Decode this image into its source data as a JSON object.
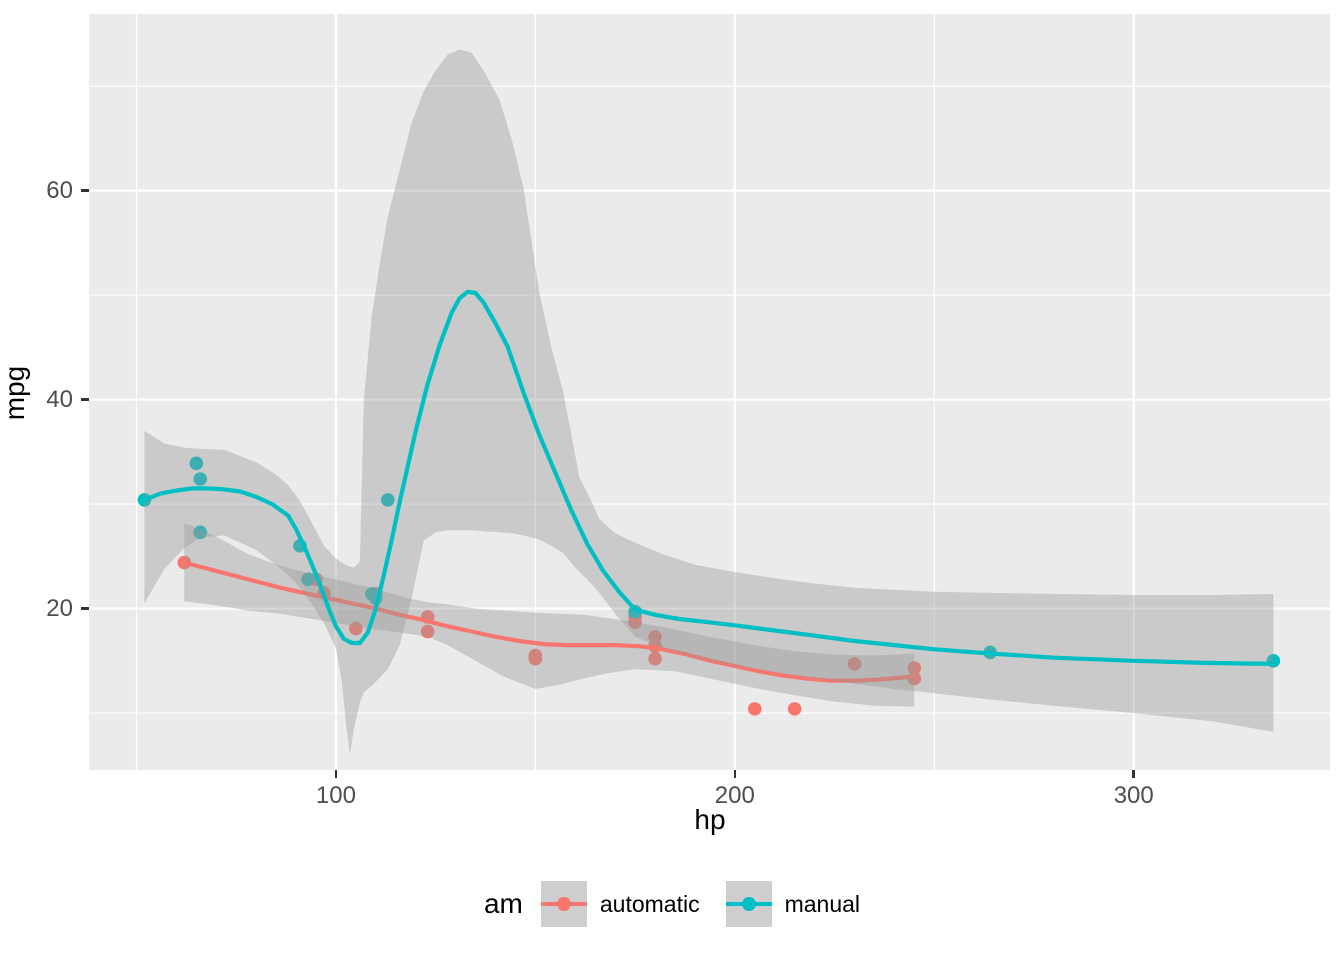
{
  "axes": {
    "x_label": "hp",
    "y_label": "mpg",
    "x_ticks": [
      100,
      200,
      300
    ],
    "y_ticks": [
      20,
      40,
      60
    ],
    "x_minor_ticks": [
      50,
      150,
      250
    ],
    "y_minor_ticks": [
      10,
      30,
      50,
      70
    ],
    "xlim": [
      38.1,
      349.2
    ],
    "ylim": [
      4.55,
      76.9
    ]
  },
  "legend": {
    "title": "am",
    "entries": [
      {
        "label": "automatic",
        "color": "#F8766D"
      },
      {
        "label": "manual",
        "color": "#00BFC4"
      }
    ]
  },
  "colors": {
    "figure_background": "#FFFFFF",
    "panel_background": "#EBEBEB",
    "grid": "#FFFFFF",
    "ribbon": "#999999",
    "ribbon_opacity": 0.4,
    "axis_text": "#4D4D4D",
    "axis_title": "#000000",
    "tick_mark": "#333333",
    "legend_key_background": "#CECECE"
  },
  "chart_data": {
    "type": "scatter",
    "subtype": "scatter-with-loess-smooth-and-confidence-ribbons",
    "title": "",
    "xlabel": "hp",
    "ylabel": "mpg",
    "xlim": [
      38.1,
      349.2
    ],
    "ylim": [
      4.55,
      76.9
    ],
    "grid": true,
    "legend_title": "am",
    "legend_position": "bottom",
    "series": [
      {
        "name": "automatic",
        "color": "#F8766D",
        "points": [
          [
            110,
            21.4
          ],
          [
            175,
            18.7
          ],
          [
            105,
            18.1
          ],
          [
            245,
            14.3
          ],
          [
            62,
            24.4
          ],
          [
            95,
            22.8
          ],
          [
            123,
            19.2
          ],
          [
            123,
            17.8
          ],
          [
            180,
            16.4
          ],
          [
            180,
            17.3
          ],
          [
            180,
            15.2
          ],
          [
            205,
            10.4
          ],
          [
            215,
            10.4
          ],
          [
            230,
            14.7
          ],
          [
            97,
            21.5
          ],
          [
            150,
            15.5
          ],
          [
            150,
            15.2
          ],
          [
            245,
            13.3
          ],
          [
            175,
            19.2
          ]
        ],
        "smooth_line": [
          [
            62,
            24.4
          ],
          [
            68,
            23.8
          ],
          [
            74,
            23.2
          ],
          [
            80,
            22.6
          ],
          [
            86,
            22.0
          ],
          [
            92,
            21.5
          ],
          [
            98,
            21.0
          ],
          [
            104,
            20.5
          ],
          [
            110,
            20.0
          ],
          [
            116,
            19.4
          ],
          [
            122,
            18.9
          ],
          [
            128,
            18.3
          ],
          [
            134,
            17.8
          ],
          [
            140,
            17.3
          ],
          [
            146,
            16.9
          ],
          [
            152,
            16.6
          ],
          [
            158,
            16.5
          ],
          [
            164,
            16.5
          ],
          [
            170,
            16.5
          ],
          [
            176,
            16.4
          ],
          [
            182,
            16.1
          ],
          [
            188,
            15.6
          ],
          [
            194,
            15.0
          ],
          [
            200,
            14.5
          ],
          [
            206,
            14.0
          ],
          [
            212,
            13.6
          ],
          [
            218,
            13.3
          ],
          [
            224,
            13.1
          ],
          [
            230,
            13.1
          ],
          [
            236,
            13.2
          ],
          [
            242,
            13.4
          ],
          [
            245,
            13.5
          ]
        ],
        "ribbon": [
          [
            62,
            20.7,
            28.2
          ],
          [
            70,
            20.3,
            26.9
          ],
          [
            78,
            19.8,
            25.2
          ],
          [
            86,
            19.5,
            24.1
          ],
          [
            94,
            19.0,
            23.3
          ],
          [
            102,
            18.5,
            22.6
          ],
          [
            110,
            18.0,
            21.9
          ],
          [
            118,
            17.6,
            21.0
          ],
          [
            123,
            17.3,
            20.6
          ],
          [
            128,
            16.5,
            20.4
          ],
          [
            135,
            15.0,
            20.0
          ],
          [
            142,
            13.5,
            19.8
          ],
          [
            150,
            12.3,
            19.6
          ],
          [
            156,
            12.7,
            19.5
          ],
          [
            162,
            13.3,
            19.4
          ],
          [
            168,
            13.8,
            19.1
          ],
          [
            175,
            14.2,
            18.7
          ],
          [
            185,
            14.0,
            18.0
          ],
          [
            195,
            13.2,
            17.2
          ],
          [
            205,
            12.4,
            16.5
          ],
          [
            215,
            11.7,
            15.9
          ],
          [
            225,
            11.1,
            15.6
          ],
          [
            235,
            10.7,
            15.5
          ],
          [
            245,
            10.6,
            15.7
          ]
        ]
      },
      {
        "name": "manual",
        "color": "#00BFC4",
        "points": [
          [
            110,
            21.0
          ],
          [
            110,
            21.0
          ],
          [
            93,
            22.8
          ],
          [
            66,
            32.4
          ],
          [
            52,
            30.4
          ],
          [
            65,
            33.9
          ],
          [
            66,
            27.3
          ],
          [
            91,
            26.0
          ],
          [
            113,
            30.4
          ],
          [
            264,
            15.8
          ],
          [
            175,
            19.7
          ],
          [
            335,
            15.0
          ],
          [
            109,
            21.4
          ]
        ],
        "smooth_line": [
          [
            52,
            30.4
          ],
          [
            56,
            31.0
          ],
          [
            60,
            31.3
          ],
          [
            64,
            31.5
          ],
          [
            68,
            31.5
          ],
          [
            72,
            31.4
          ],
          [
            76,
            31.2
          ],
          [
            80,
            30.7
          ],
          [
            84,
            30.0
          ],
          [
            88,
            28.9
          ],
          [
            90,
            27.6
          ],
          [
            92,
            26.0
          ],
          [
            94,
            24.2
          ],
          [
            96,
            22.3
          ],
          [
            98,
            20.2
          ],
          [
            100,
            18.3
          ],
          [
            102,
            17.1
          ],
          [
            104,
            16.7
          ],
          [
            106,
            16.7
          ],
          [
            108,
            17.7
          ],
          [
            110,
            20.0
          ],
          [
            112,
            23.2
          ],
          [
            114,
            26.6
          ],
          [
            116,
            30.2
          ],
          [
            118,
            33.6
          ],
          [
            120,
            37.0
          ],
          [
            123,
            41.5
          ],
          [
            126,
            45.2
          ],
          [
            129,
            48.3
          ],
          [
            131,
            49.7
          ],
          [
            133,
            50.3
          ],
          [
            135,
            50.2
          ],
          [
            137,
            49.3
          ],
          [
            140,
            47.3
          ],
          [
            143,
            45.1
          ],
          [
            147,
            40.7
          ],
          [
            151,
            36.6
          ],
          [
            155,
            33.0
          ],
          [
            159,
            29.4
          ],
          [
            163,
            26.2
          ],
          [
            167,
            23.6
          ],
          [
            171,
            21.6
          ],
          [
            175,
            19.9
          ],
          [
            180,
            19.4
          ],
          [
            186,
            19.0
          ],
          [
            193,
            18.7
          ],
          [
            200,
            18.4
          ],
          [
            210,
            17.9
          ],
          [
            220,
            17.4
          ],
          [
            230,
            16.9
          ],
          [
            240,
            16.5
          ],
          [
            250,
            16.1
          ],
          [
            264,
            15.7
          ],
          [
            280,
            15.3
          ],
          [
            300,
            15.0
          ],
          [
            318,
            14.8
          ],
          [
            335,
            14.7
          ]
        ],
        "ribbon": [
          [
            52,
            20.5,
            37.0
          ],
          [
            57,
            23.8,
            35.8
          ],
          [
            62,
            25.8,
            35.4
          ],
          [
            66,
            26.8,
            35.3
          ],
          [
            72,
            27.0,
            35.2
          ],
          [
            80,
            25.6,
            34.0
          ],
          [
            85,
            24.2,
            32.8
          ],
          [
            88,
            23.2,
            31.8
          ],
          [
            91,
            22.0,
            30.3
          ],
          [
            94,
            20.4,
            28.2
          ],
          [
            97,
            18.6,
            26.0
          ],
          [
            100,
            16.2,
            24.8
          ],
          [
            101.5,
            13.0,
            24.4
          ],
          [
            102.5,
            9.0,
            24.2
          ],
          [
            103.5,
            6.0,
            24.0
          ],
          [
            104.5,
            8.5,
            23.9
          ],
          [
            106,
            11.0,
            24.5
          ],
          [
            107,
            12.0,
            40.0
          ],
          [
            109,
            12.6,
            48.0
          ],
          [
            111,
            13.4,
            53.0
          ],
          [
            113,
            14.2,
            57.5
          ],
          [
            116,
            16.5,
            62.0
          ],
          [
            119,
            21.0,
            66.5
          ],
          [
            122,
            26.5,
            69.5
          ],
          [
            125,
            27.3,
            71.5
          ],
          [
            128,
            27.5,
            73.0
          ],
          [
            131,
            27.5,
            73.5
          ],
          [
            134,
            27.5,
            73.2
          ],
          [
            137,
            27.4,
            71.5
          ],
          [
            141,
            27.3,
            68.7
          ],
          [
            144,
            27.2,
            65.0
          ],
          [
            147,
            27.0,
            60.3
          ],
          [
            151,
            26.6,
            50.2
          ],
          [
            154,
            26.0,
            45.0
          ],
          [
            157,
            25.3,
            40.7
          ],
          [
            161,
            23.5,
            32.6
          ],
          [
            164,
            22.4,
            30.3
          ],
          [
            166,
            21.5,
            28.6
          ],
          [
            170,
            19.5,
            27.2
          ],
          [
            175,
            17.3,
            26.3
          ],
          [
            182,
            16.2,
            25.2
          ],
          [
            190,
            15.3,
            24.2
          ],
          [
            200,
            14.5,
            23.5
          ],
          [
            210,
            13.9,
            22.9
          ],
          [
            220,
            13.3,
            22.4
          ],
          [
            230,
            12.8,
            22.0
          ],
          [
            240,
            12.3,
            21.8
          ],
          [
            250,
            11.9,
            21.6
          ],
          [
            264,
            11.3,
            21.5
          ],
          [
            280,
            10.7,
            21.4
          ],
          [
            300,
            10.0,
            21.3
          ],
          [
            320,
            9.2,
            21.3
          ],
          [
            335,
            8.2,
            21.4
          ]
        ]
      }
    ]
  }
}
